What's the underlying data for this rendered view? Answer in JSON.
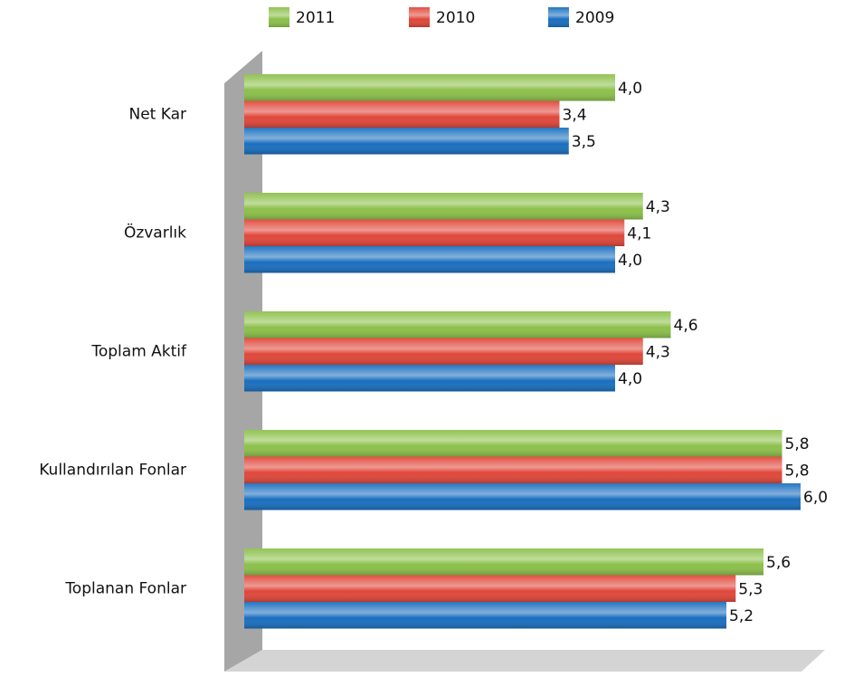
{
  "chart_data": {
    "type": "hbar",
    "categories": [
      "Net Kar",
      "Özvarlık",
      "Toplam Aktif",
      "Kullandırılan Fonlar",
      "Toplanan Fonlar"
    ],
    "series": [
      {
        "name": "2011",
        "color": "#8cc04a",
        "values": [
          4.0,
          4.3,
          4.6,
          5.8,
          5.6
        ],
        "value_labels": [
          "4,0",
          "4,3",
          "4,6",
          "5,8",
          "5,6"
        ]
      },
      {
        "name": "2010",
        "color": "#e0473a",
        "values": [
          3.4,
          4.1,
          4.3,
          5.8,
          5.3
        ],
        "value_labels": [
          "3,4",
          "4,1",
          "4,3",
          "5,8",
          "5,3"
        ]
      },
      {
        "name": "2009",
        "color": "#1a6fbf",
        "values": [
          3.5,
          4.0,
          4.0,
          6.0,
          5.2
        ],
        "value_labels": [
          "3,5",
          "4,0",
          "4,0",
          "6,0",
          "5,2"
        ]
      }
    ],
    "xlim": [
      0,
      6
    ],
    "legend": "top"
  }
}
